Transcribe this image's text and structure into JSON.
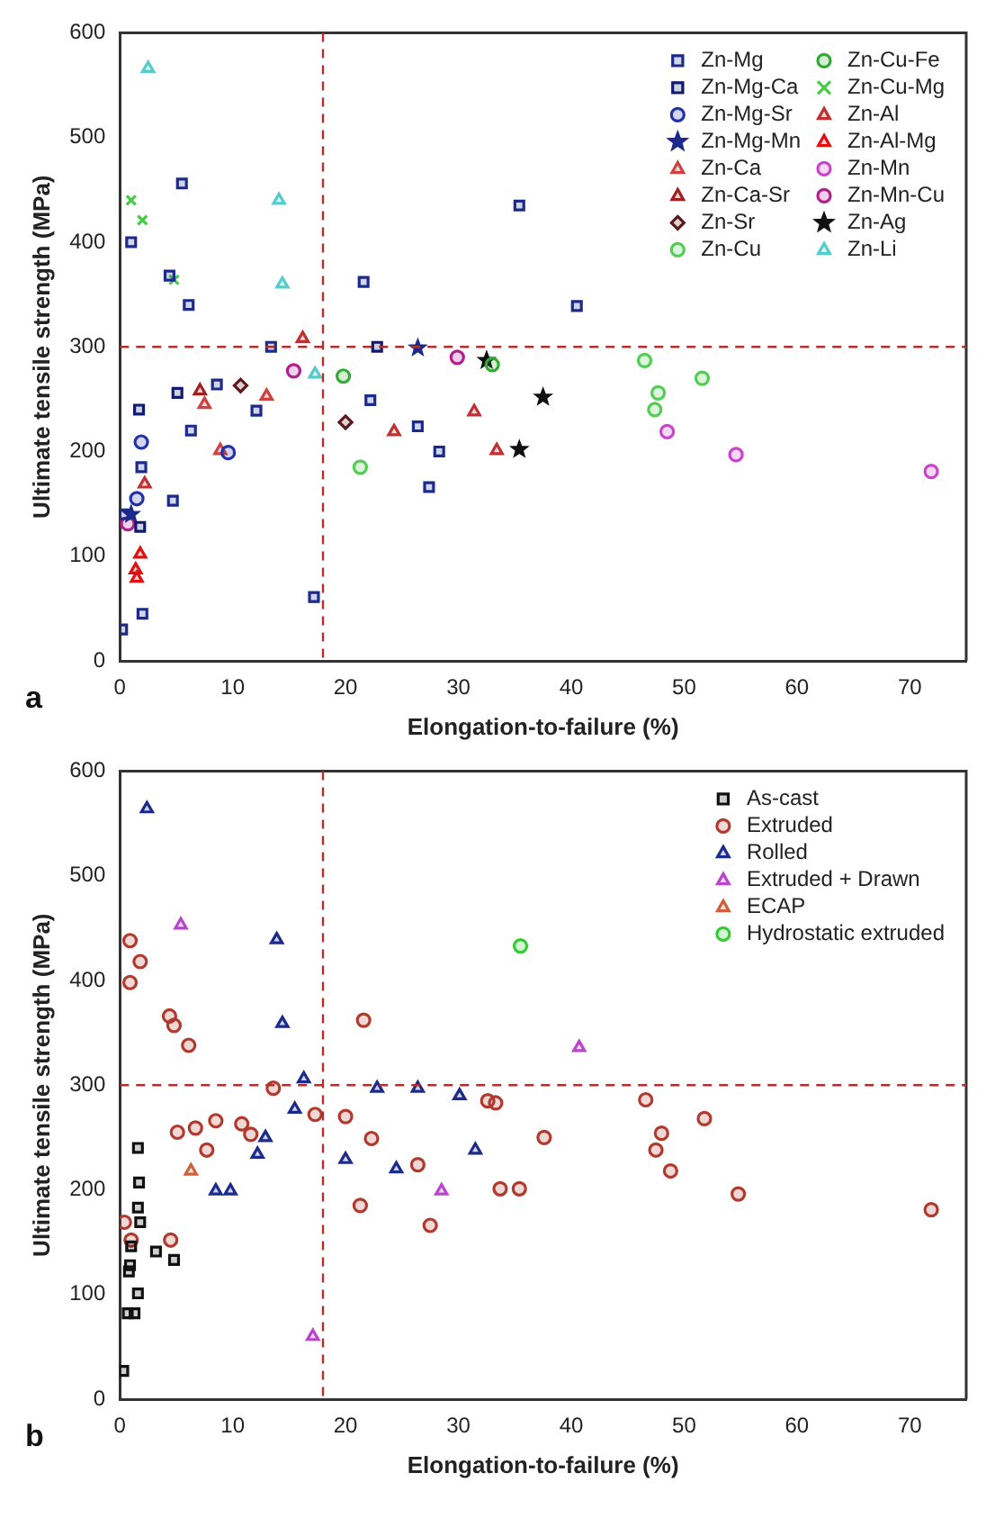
{
  "chart_data": [
    {
      "type": "scatter",
      "xlabel": "Elongation-to-failure (%)",
      "ylabel": "Ultimate tensile strength (MPa)",
      "xlim": [
        0,
        75
      ],
      "xticks": [
        0,
        10,
        20,
        30,
        40,
        50,
        60,
        70
      ],
      "ylim": [
        0,
        600
      ],
      "yticks": [
        0,
        100,
        200,
        300,
        400,
        500,
        600
      ],
      "grid": false,
      "legend": "top right",
      "annotations": [
        "a"
      ],
      "ref_lines": [
        {
          "axis": "x",
          "value": 18,
          "color": "#b03030",
          "line_style": "dashed"
        },
        {
          "axis": "y",
          "value": 300,
          "color": "#b03030",
          "line_style": "dashed"
        }
      ],
      "series": [
        {
          "name": "Zn-Mg",
          "color": "#1c2a8c",
          "marker": "square",
          "x": [
            1,
            5.5,
            4.4,
            6.1,
            4.7,
            6.3,
            8.6,
            1.9,
            2,
            0.2,
            17.2,
            21.6,
            22.2,
            26.4,
            28.3,
            27.4,
            13.4,
            12.1,
            35.4,
            40.5,
            0.4
          ],
          "values": [
            400,
            456,
            368,
            340,
            153,
            220,
            264,
            185,
            45,
            30,
            61,
            362,
            249,
            224,
            200,
            166,
            300,
            239,
            435,
            339,
            140
          ]
        },
        {
          "name": "Zn-Mg-Ca",
          "color": "#101a70",
          "marker": "square",
          "x": [
            1.7,
            5.1,
            22.8,
            1.8
          ],
          "values": [
            240,
            256,
            300,
            128
          ]
        },
        {
          "name": "Zn-Mg-Sr",
          "color": "#2233aa",
          "marker": "circle",
          "x": [
            1.9,
            9.6,
            1.5
          ],
          "values": [
            209,
            199,
            155
          ]
        },
        {
          "name": "Zn-Mg-Mn",
          "color": "#1c2a8c",
          "marker": "star",
          "x": [
            26.4,
            1
          ],
          "values": [
            299,
            140
          ]
        },
        {
          "name": "Zn-Ca",
          "color": "#d04040",
          "marker": "triangle",
          "x": [
            7.5,
            13,
            8.9
          ],
          "values": [
            245,
            253,
            201
          ]
        },
        {
          "name": "Zn-Ca-Sr",
          "color": "#a02020",
          "marker": "triangle",
          "x": [
            7.1
          ],
          "values": [
            258
          ]
        },
        {
          "name": "Zn-Sr",
          "color": "#5a1a1a",
          "marker": "diamond",
          "x": [
            10.7,
            20
          ],
          "values": [
            263,
            228
          ]
        },
        {
          "name": "Zn-Cu",
          "color": "#55cc55",
          "marker": "circle",
          "x": [
            21.3,
            46.5,
            47.7,
            47.4,
            51.6
          ],
          "values": [
            185,
            287,
            256,
            240,
            270
          ]
        },
        {
          "name": "Zn-Cu-Fe",
          "color": "#33aa33",
          "marker": "circle",
          "x": [
            19.8,
            33
          ],
          "values": [
            272,
            283
          ]
        },
        {
          "name": "Zn-Cu-Mg",
          "color": "#44cc44",
          "marker": "cross",
          "x": [
            1,
            2,
            4.8
          ],
          "values": [
            440,
            421,
            364
          ]
        },
        {
          "name": "Zn-Al",
          "color": "#c03030",
          "marker": "triangle",
          "x": [
            16.2,
            24.3,
            31.4,
            33.4,
            2.2
          ],
          "values": [
            308,
            219,
            238,
            201,
            169
          ]
        },
        {
          "name": "Zn-Al-Mg",
          "color": "#e01010",
          "marker": "triangle",
          "x": [
            1.8,
            1.4,
            1.5
          ],
          "values": [
            102,
            87,
            79
          ]
        },
        {
          "name": "Zn-Mn",
          "color": "#cc44cc",
          "marker": "circle",
          "x": [
            48.5,
            54.6,
            71.9
          ],
          "values": [
            219,
            197,
            181
          ]
        },
        {
          "name": "Zn-Mn-Cu",
          "color": "#b0208f",
          "marker": "circle",
          "x": [
            29.9,
            15.4,
            0.7
          ],
          "values": [
            290,
            277,
            131
          ]
        },
        {
          "name": "Zn-Ag",
          "color": "#111111",
          "marker": "star",
          "x": [
            32.5,
            37.5,
            35.4
          ],
          "values": [
            287,
            252,
            202
          ]
        },
        {
          "name": "Zn-Li",
          "color": "#55cccc",
          "marker": "triangle",
          "x": [
            2.5,
            14.1,
            14.4,
            17.3
          ],
          "values": [
            566,
            440,
            360,
            274
          ]
        }
      ]
    },
    {
      "type": "scatter",
      "xlabel": "Elongation-to-failure (%)",
      "ylabel": "Ultimate tensile strength (MPa)",
      "xlim": [
        0,
        75
      ],
      "xticks": [
        0,
        10,
        20,
        30,
        40,
        50,
        60,
        70
      ],
      "ylim": [
        0,
        600
      ],
      "yticks": [
        0,
        100,
        200,
        300,
        400,
        500,
        600
      ],
      "grid": false,
      "legend": "top right",
      "annotations": [
        "b"
      ],
      "ref_lines": [
        {
          "axis": "x",
          "value": 18,
          "color": "#b03030",
          "line_style": "dashed"
        },
        {
          "axis": "y",
          "value": 300,
          "color": "#b03030",
          "line_style": "dashed"
        }
      ],
      "series": [
        {
          "name": "As-cast",
          "color": "#111111",
          "marker": "square",
          "x": [
            1.6,
            1.7,
            1.6,
            1.8,
            1,
            0.9,
            0.8,
            1.6,
            1.3,
            0.7,
            0.3,
            3.2,
            4.8
          ],
          "values": [
            240,
            207,
            183,
            169,
            146,
            128,
            122,
            101,
            82,
            82,
            27,
            141,
            133
          ]
        },
        {
          "name": "Extruded",
          "color": "#b03a2e",
          "marker": "circle",
          "x": [
            0.9,
            1.8,
            0.9,
            4.4,
            4.8,
            6.1,
            5.1,
            6.7,
            7.7,
            8.5,
            10.8,
            11.6,
            13.6,
            17.3,
            20,
            21.6,
            22.3,
            21.3,
            26.4,
            27.5,
            33.7,
            35.4,
            32.6,
            33.3,
            37.6,
            46.6,
            48,
            47.5,
            48.8,
            51.8,
            54.8,
            71.9,
            0.4,
            1,
            4.5
          ],
          "values": [
            438,
            418,
            398,
            366,
            357,
            338,
            255,
            259,
            238,
            266,
            263,
            253,
            297,
            272,
            270,
            362,
            249,
            185,
            224,
            166,
            201,
            201,
            285,
            283,
            250,
            286,
            254,
            238,
            218,
            268,
            196,
            181,
            169,
            152,
            152
          ]
        },
        {
          "name": "Rolled",
          "color": "#1c2a8c",
          "marker": "triangle",
          "x": [
            2.4,
            13.9,
            14.4,
            16.3,
            15.5,
            12.9,
            12.2,
            8.5,
            9.8,
            20,
            22.8,
            24.5,
            26.4,
            30.1,
            31.5
          ],
          "values": [
            564,
            439,
            359,
            306,
            277,
            250,
            234,
            199,
            199,
            229,
            297,
            220,
            297,
            290,
            238
          ]
        },
        {
          "name": "Extruded + Drawn",
          "color": "#bb44cc",
          "marker": "triangle",
          "x": [
            5.4,
            17.1,
            28.5,
            40.7
          ],
          "values": [
            453,
            60,
            199,
            336
          ]
        },
        {
          "name": "ECAP",
          "color": "#d0603a",
          "marker": "triangle",
          "x": [
            6.3
          ],
          "values": [
            218
          ]
        },
        {
          "name": "Hydrostatic extruded",
          "color": "#33cc33",
          "marker": "circle",
          "x": [
            35.5
          ],
          "values": [
            433
          ]
        }
      ]
    }
  ]
}
